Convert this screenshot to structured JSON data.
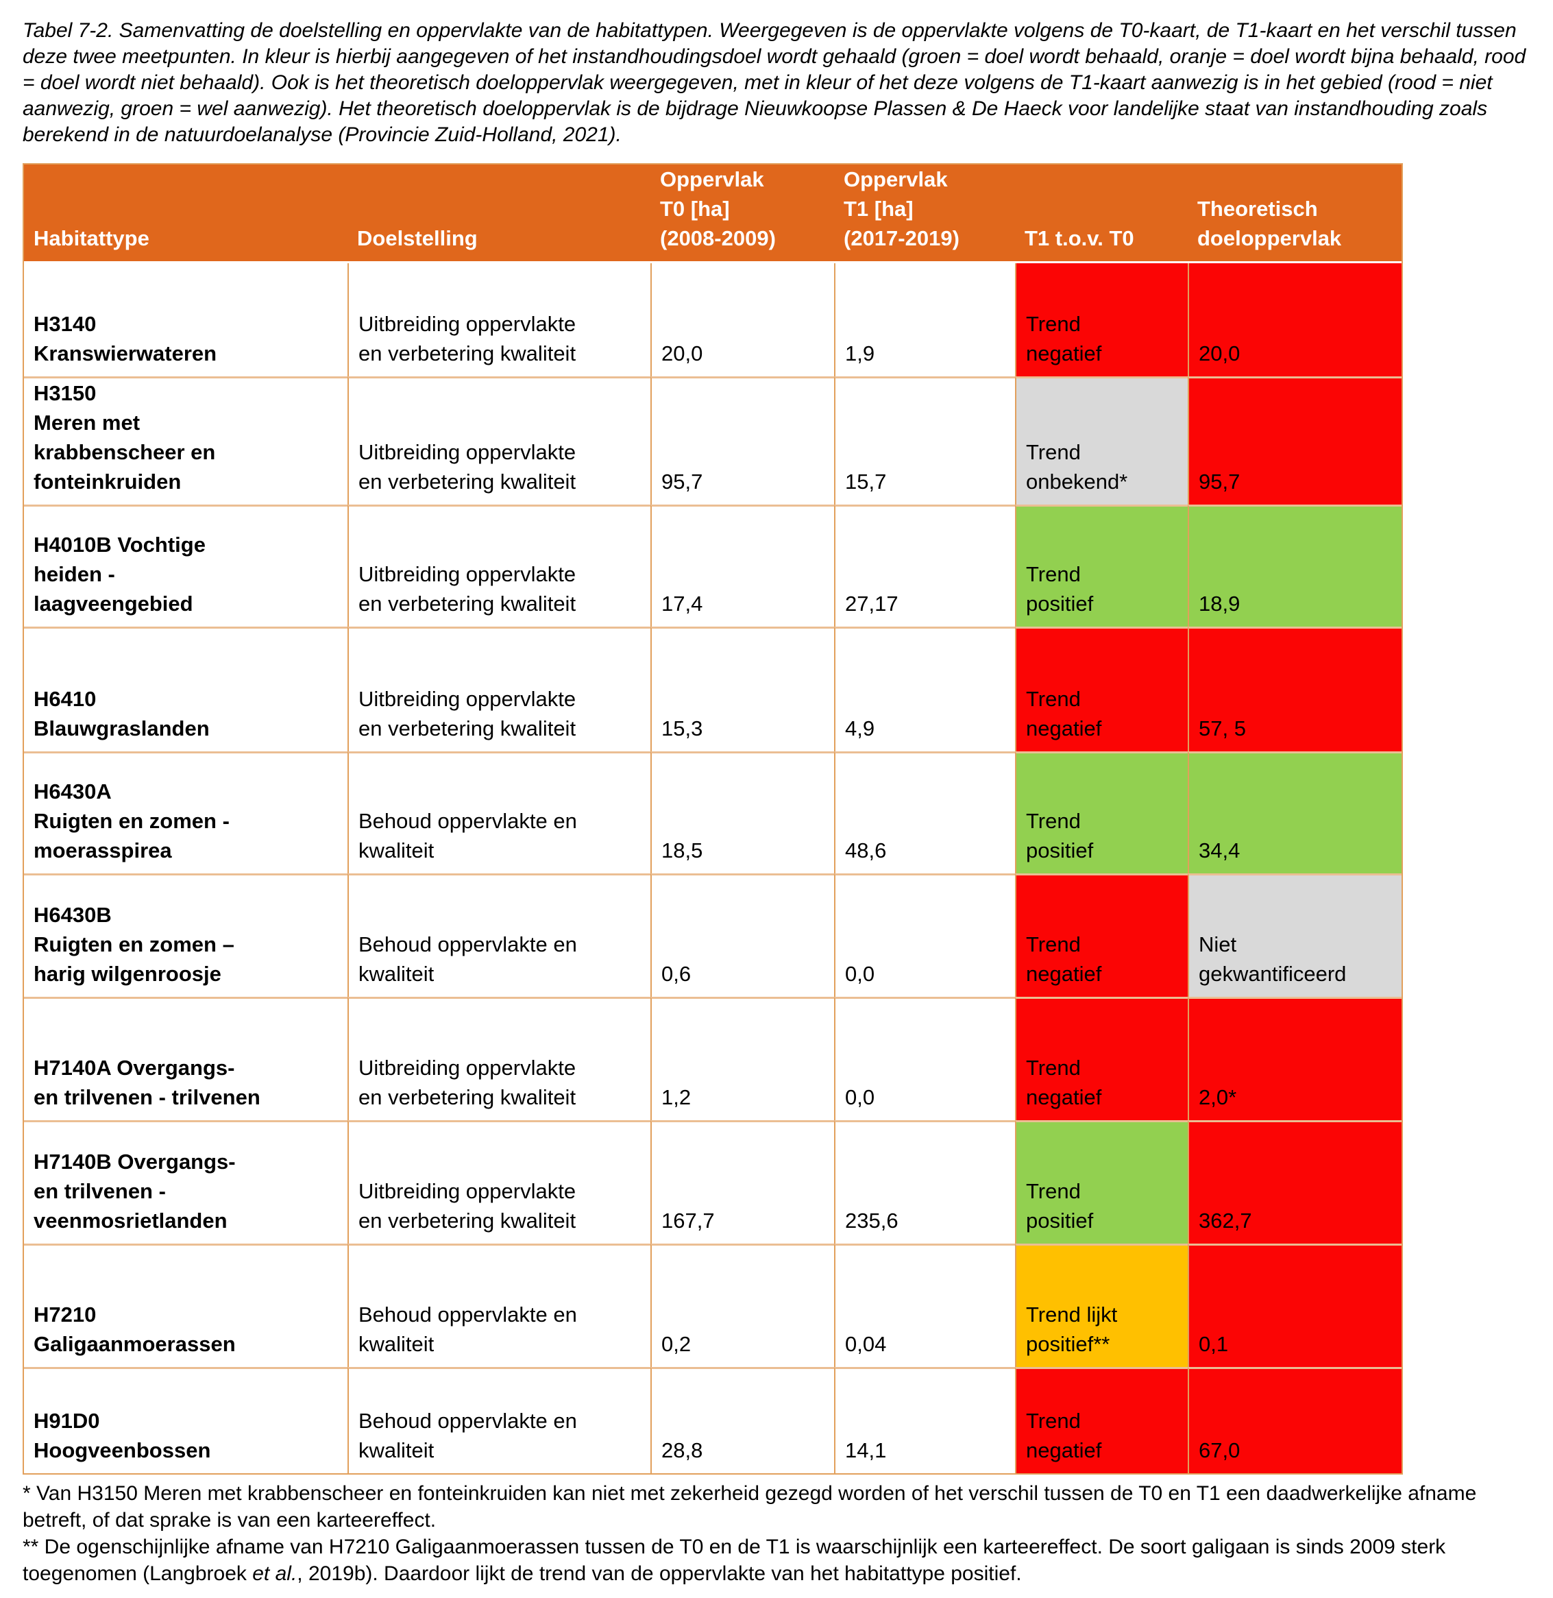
{
  "caption": "Tabel 7-2. Samenvatting de doelstelling en oppervlakte van de habitattypen. Weergegeven is de oppervlakte volgens de T0-kaart, de T1-kaart en het verschil tussen deze twee meetpunten. In kleur is hierbij aangegeven of het instandhoudingsdoel wordt gehaald (groen = doel wordt behaald, oranje = doel wordt bijna behaald, rood = doel wordt niet behaald). Ook is het theoretisch doeloppervlak weergegeven, met in kleur of het deze volgens de T1-kaart aanwezig is in het gebied (rood = niet aanwezig, groen = wel aanwezig). Het theoretisch doeloppervlak is de bijdrage Nieuwkoopse Plassen & De Haeck voor landelijke staat van instandhouding zoals berekend in de natuurdoelanalyse (Provincie Zuid-Holland, 2021).",
  "colors": {
    "header_bg": "#e0671c",
    "red": "#fb0505",
    "green": "#92d050",
    "amber": "#ffc000",
    "gray": "#d9d9d9"
  },
  "table": {
    "headers": [
      "Habitattype",
      "Doelstelling",
      "Oppervlak\nT0 [ha]\n(2008-2009)",
      "Oppervlak\nT1 [ha]\n(2017-2019)",
      "T1 t.o.v. T0",
      "Theoretisch\ndoeloppervlak"
    ],
    "rows": [
      {
        "habitattype": "H3140\nKranswierwateren",
        "doelstelling": "Uitbreiding oppervlakte\nen verbetering kwaliteit",
        "t0": "20,0",
        "t1": "1,9",
        "trend": "Trend\nnegatief",
        "trend_color": "red",
        "doel": "20,0",
        "doel_color": "red"
      },
      {
        "habitattype": "H3150\nMeren met\nkrabbenscheer en\nfonteinkruiden",
        "doelstelling": "Uitbreiding oppervlakte\nen verbetering kwaliteit",
        "t0": "95,7",
        "t1": "15,7",
        "trend": "Trend\nonbekend*",
        "trend_color": "gray",
        "doel": "95,7",
        "doel_color": "red"
      },
      {
        "habitattype": "H4010B Vochtige\nheiden -\nlaagveengebied",
        "doelstelling": "Uitbreiding oppervlakte\nen verbetering kwaliteit",
        "t0": "17,4",
        "t1": "27,17",
        "trend": "Trend\npositief",
        "trend_color": "green",
        "doel": "18,9",
        "doel_color": "green"
      },
      {
        "habitattype": "H6410\nBlauwgraslanden",
        "doelstelling": "Uitbreiding oppervlakte\nen verbetering kwaliteit",
        "t0": "15,3",
        "t1": "4,9",
        "trend": "Trend\nnegatief",
        "trend_color": "red",
        "doel": "57, 5",
        "doel_color": "red"
      },
      {
        "habitattype": "H6430A\nRuigten en zomen -\nmoerasspirea",
        "doelstelling": "Behoud oppervlakte en\nkwaliteit",
        "t0": "18,5",
        "t1": "48,6",
        "trend": "Trend\npositief",
        "trend_color": "green",
        "doel": "34,4",
        "doel_color": "green"
      },
      {
        "habitattype": "H6430B\nRuigten en zomen –\nharig wilgenroosje",
        "doelstelling": "Behoud oppervlakte en\nkwaliteit",
        "t0": "0,6",
        "t1": "0,0",
        "trend": "Trend\nnegatief",
        "trend_color": "red",
        "doel": "Niet\ngekwantificeerd",
        "doel_color": "gray"
      },
      {
        "habitattype": "H7140A Overgangs-\nen trilvenen - trilvenen",
        "doelstelling": "Uitbreiding oppervlakte\nen verbetering kwaliteit",
        "t0": "1,2",
        "t1": "0,0",
        "trend": "Trend\nnegatief",
        "trend_color": "red",
        "doel": "2,0*",
        "doel_color": "red"
      },
      {
        "habitattype": "H7140B Overgangs-\nen trilvenen -\nveenmosrietlanden",
        "doelstelling": "Uitbreiding oppervlakte\nen verbetering kwaliteit",
        "t0": "167,7",
        "t1": "235,6",
        "trend": "Trend\npositief",
        "trend_color": "green",
        "doel": "362,7",
        "doel_color": "red"
      },
      {
        "habitattype": "H7210\nGaligaanmoerassen",
        "doelstelling": "Behoud oppervlakte en\nkwaliteit",
        "t0": "0,2",
        "t1": "0,04",
        "trend": "Trend lijkt\npositief**",
        "trend_color": "amber",
        "doel": "0,1",
        "doel_color": "red"
      },
      {
        "habitattype": "H91D0\nHoogveenbossen",
        "doelstelling": "Behoud oppervlakte en\nkwaliteit",
        "t0": "28,8",
        "t1": "14,1",
        "trend": "Trend\nnegatief",
        "trend_color": "red",
        "doel": "67,0",
        "doel_color": "red"
      }
    ]
  },
  "footnotes": {
    "note1": "* Van H3150 Meren met krabbenscheer en fonteinkruiden kan niet met zekerheid gezegd worden of het verschil tussen de T0 en T1 een daadwerkelijke afname betreft, of dat sprake is van een karteereffect.",
    "note2_pre": "** De ogenschijnlijke afname van H7210 Galigaanmoerassen tussen de T0 en de T1 is waarschijnlijk een karteereffect. De soort galigaan is sinds 2009 sterk toegenomen (Langbroek ",
    "note2_italic": "et al.",
    "note2_post": ", 2019b). Daardoor lijkt de trend van de oppervlakte van het habitattype positief."
  }
}
